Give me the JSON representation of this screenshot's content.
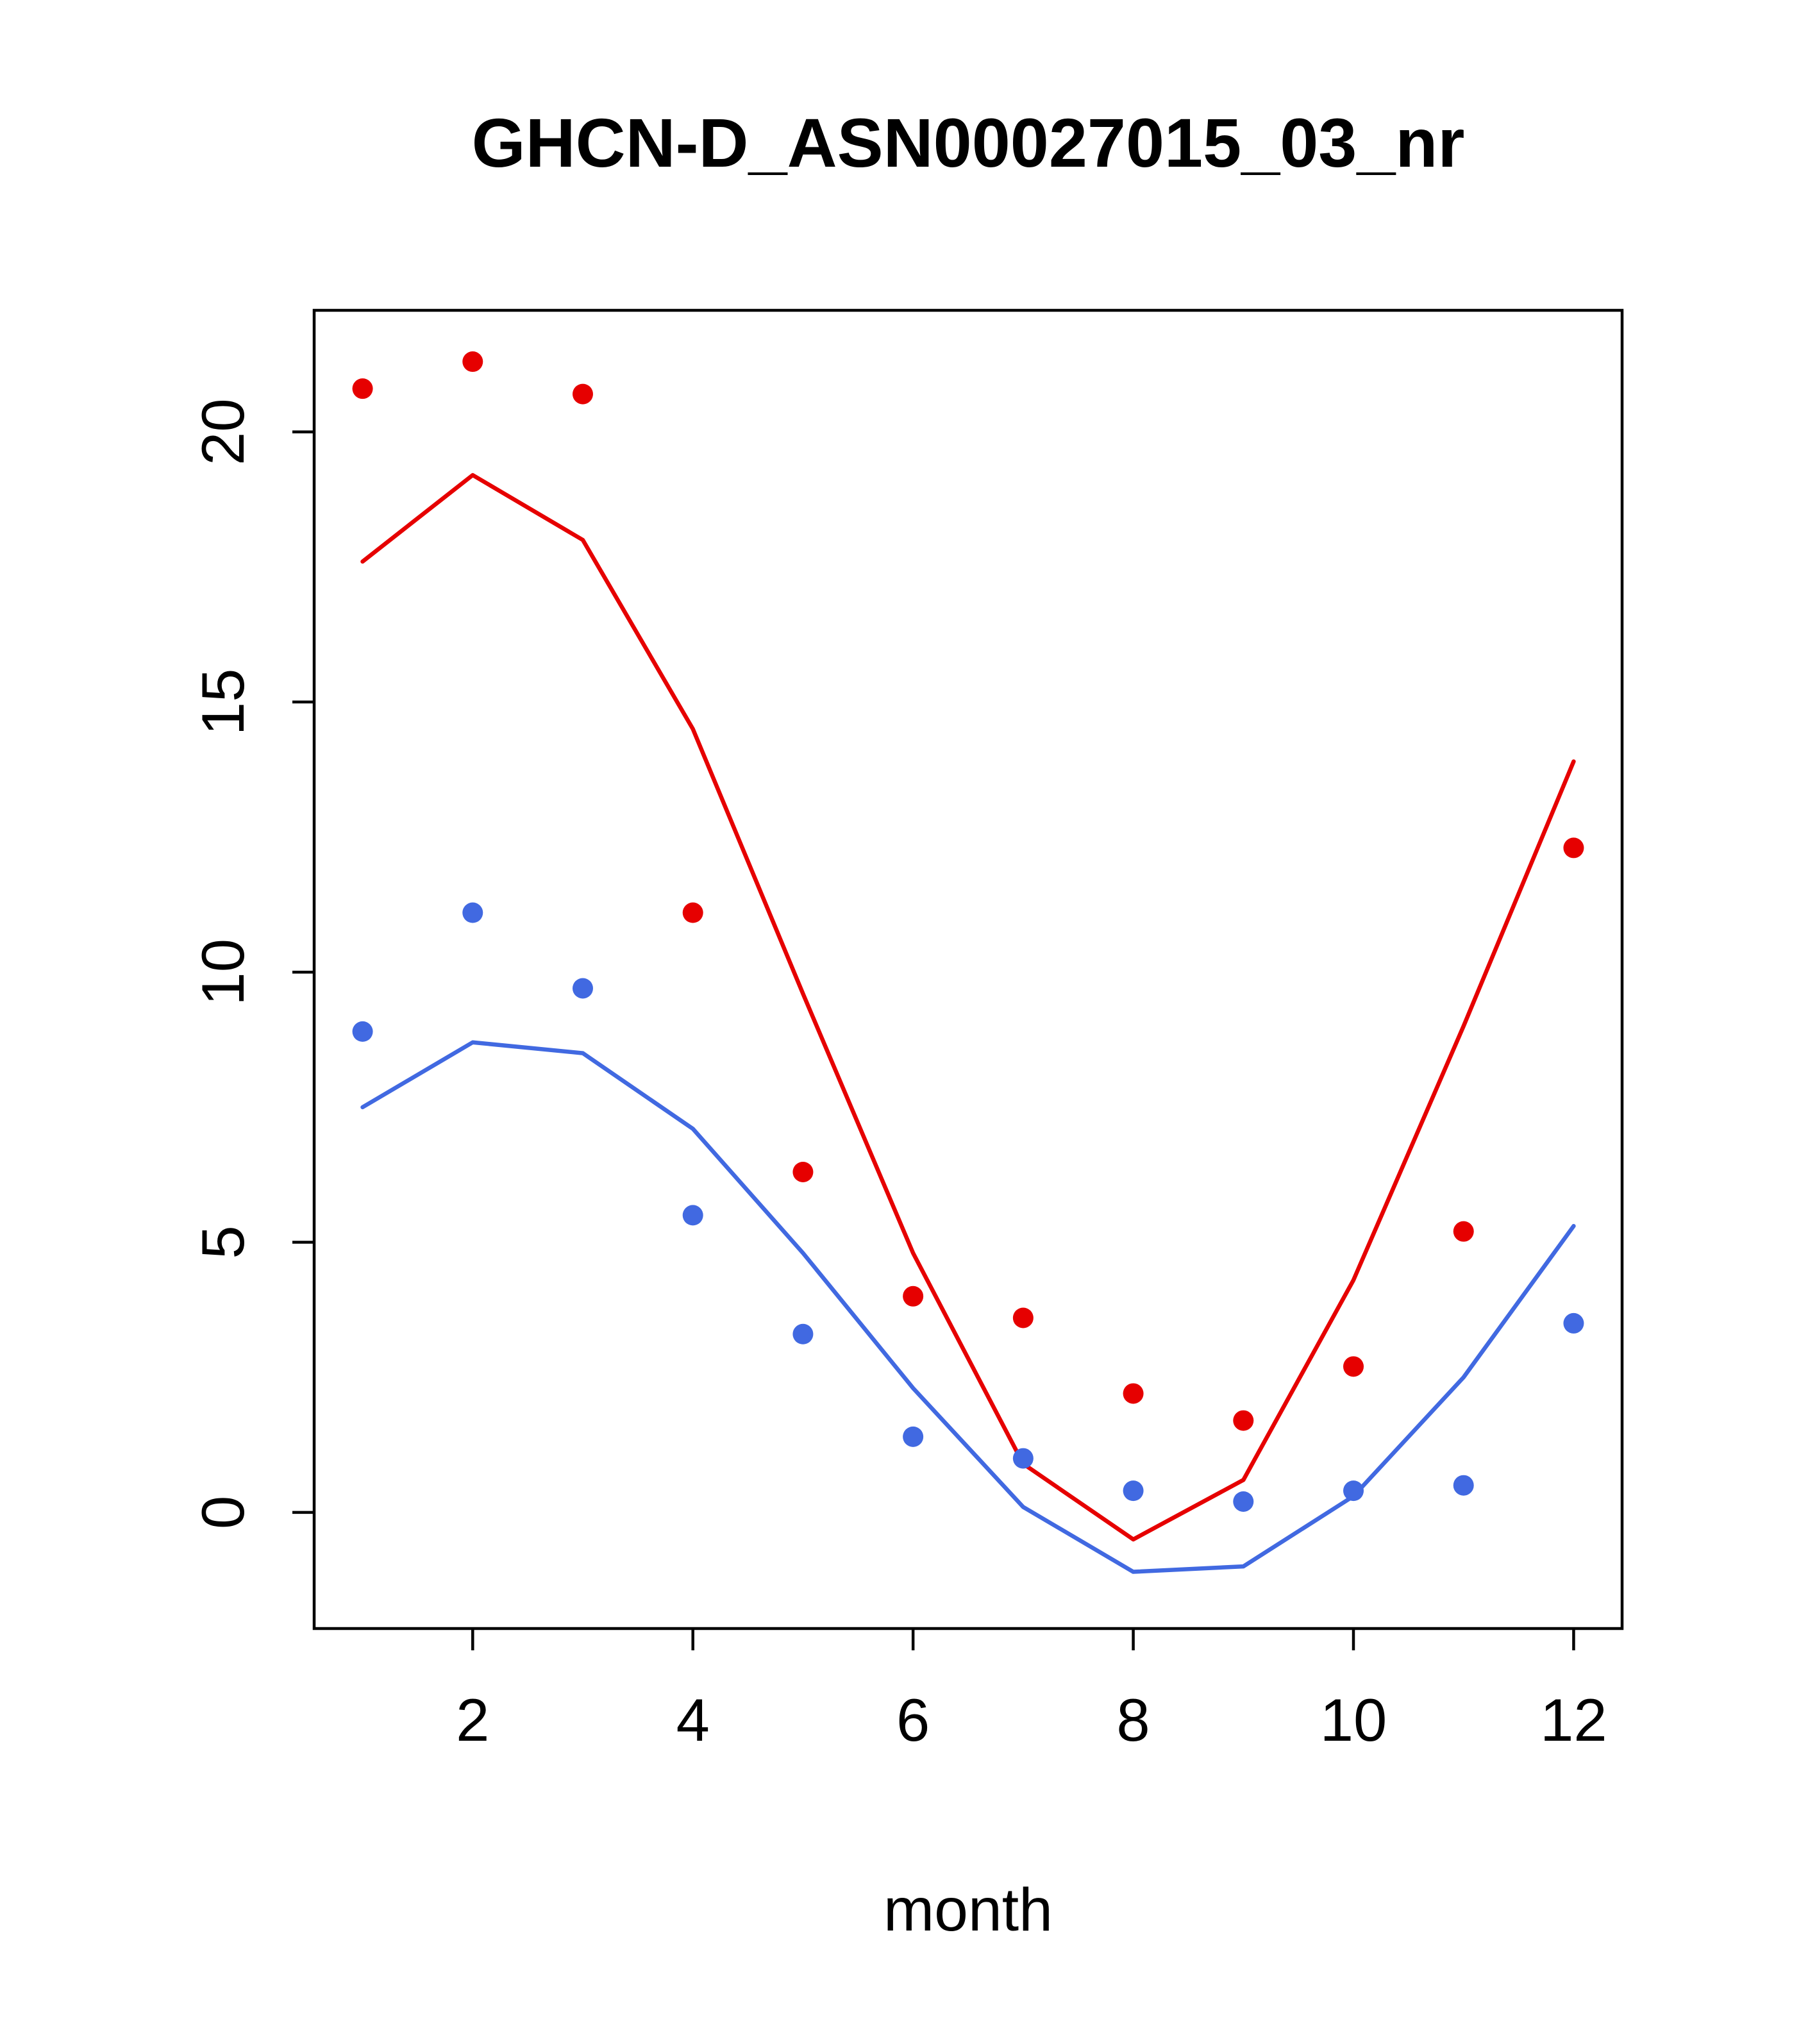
{
  "page": {
    "background": "#ffffff",
    "text_color": "#000000"
  },
  "chart_data": {
    "type": "line",
    "title": "GHCN-D_ASN00027015_03_nr",
    "xlabel": "month",
    "ylabel": "",
    "grid": false,
    "legend_position": "none",
    "x": [
      1,
      2,
      3,
      4,
      5,
      6,
      7,
      8,
      9,
      10,
      11,
      12
    ],
    "xlim": [
      0.56,
      12.44
    ],
    "ylim": [
      -2.15,
      22.25
    ],
    "xticks": [
      2,
      4,
      6,
      8,
      10,
      12
    ],
    "yticks": [
      0,
      5,
      10,
      15,
      20
    ],
    "colors": {
      "red_series": "#e60000",
      "blue_series": "#4169e1",
      "axis": "#000000"
    },
    "series": [
      {
        "name": "red-line",
        "kind": "line",
        "color": "#e60000",
        "values": [
          17.6,
          19.2,
          18.0,
          14.5,
          9.6,
          4.8,
          0.9,
          -0.5,
          0.6,
          4.3,
          9.0,
          13.9
        ]
      },
      {
        "name": "blue-line",
        "kind": "line",
        "color": "#4169e1",
        "values": [
          7.5,
          8.7,
          8.5,
          7.1,
          4.8,
          2.3,
          0.1,
          -1.1,
          -1.0,
          0.3,
          2.5,
          5.3
        ]
      },
      {
        "name": "red-points",
        "kind": "points",
        "color": "#e60000",
        "values": [
          20.8,
          21.3,
          20.7,
          11.1,
          6.3,
          4.0,
          3.6,
          2.2,
          1.7,
          2.7,
          5.2,
          12.3
        ]
      },
      {
        "name": "blue-points",
        "kind": "points",
        "color": "#4169e1",
        "values": [
          8.9,
          11.1,
          9.7,
          5.5,
          3.3,
          1.4,
          1.0,
          0.4,
          0.2,
          0.4,
          0.5,
          3.5
        ]
      }
    ]
  }
}
